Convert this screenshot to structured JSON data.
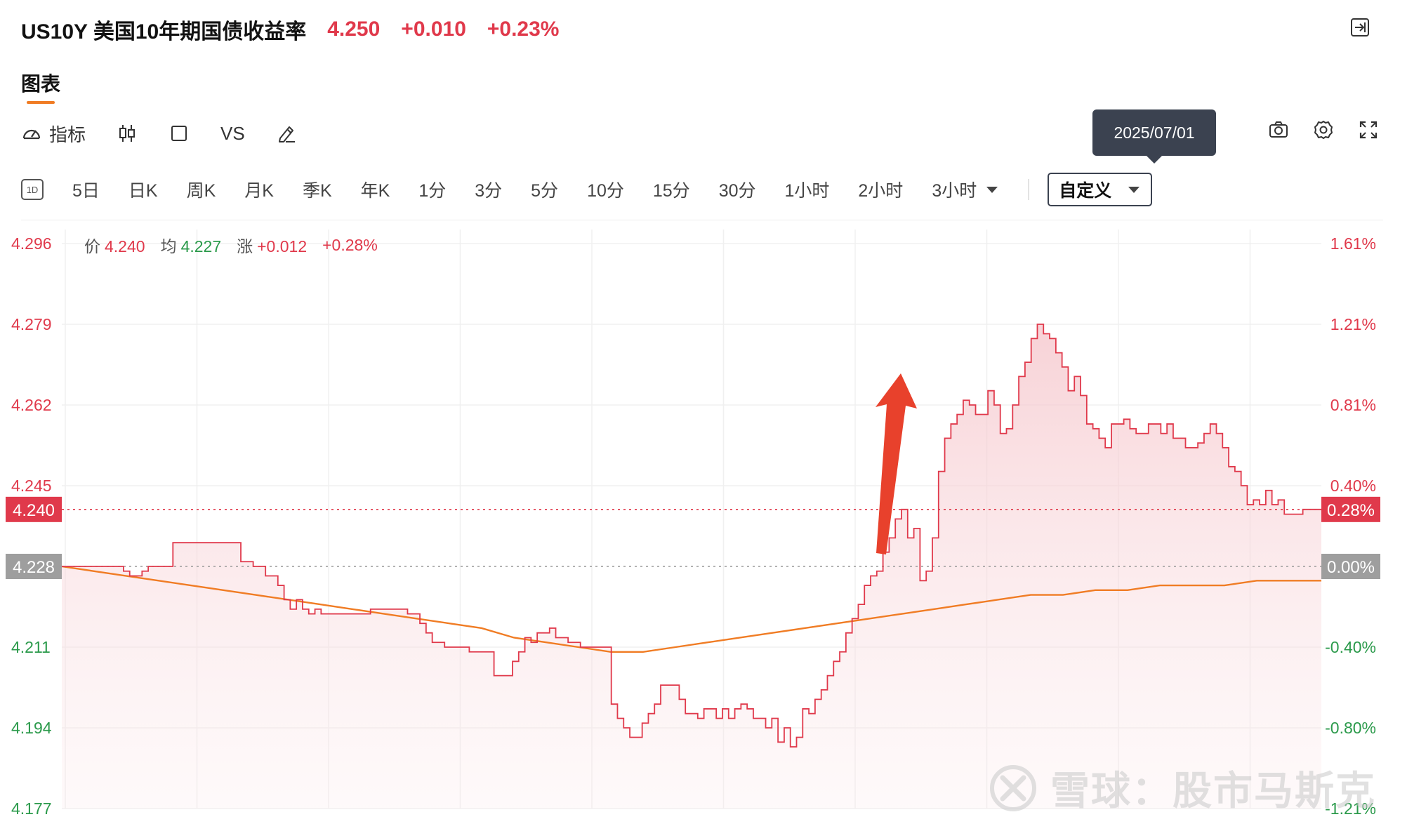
{
  "header": {
    "title": "US10Y 美国10年期国债收益率",
    "price": "4.250",
    "change": "+0.010",
    "change_pct": "+0.23%"
  },
  "tabs": {
    "chart": "图表"
  },
  "toolbar": {
    "indicator_label": "指标",
    "vs_label": "VS"
  },
  "tooltip": {
    "date": "2025/07/01"
  },
  "periods": {
    "items": [
      "5日",
      "日K",
      "周K",
      "月K",
      "季K",
      "年K",
      "1分",
      "3分",
      "5分",
      "10分",
      "15分",
      "30分",
      "1小时",
      "2小时"
    ],
    "more": "3小时",
    "custom": "自定义"
  },
  "info": {
    "price_label": "价",
    "price": "4.240",
    "avg_label": "均",
    "avg": "4.227",
    "chg_label": "涨",
    "chg": "+0.012",
    "chg_pct": "+0.28%"
  },
  "watermark": {
    "text": "雪球：股市马斯克"
  },
  "colors": {
    "up": "#e0394b",
    "down": "#2b9a4b",
    "avg_line": "#f07c24",
    "tooltip_bg": "#3b4250",
    "neutral_tag": "#9e9e9e"
  },
  "chart_data": {
    "type": "area",
    "left_axis_ticks": [
      "4.296",
      "4.279",
      "4.262",
      "4.245",
      "4.211",
      "4.194",
      "4.177"
    ],
    "right_axis_ticks": [
      "1.61%",
      "1.21%",
      "0.81%",
      "0.40%",
      "-0.40%",
      "-0.80%",
      "-1.21%"
    ],
    "ylim": [
      4.177,
      4.296
    ],
    "prev_close": 4.228,
    "prev_close_label": "4.228",
    "prev_close_pct": "0.00%",
    "current": 4.24,
    "current_label": "4.240",
    "current_pct": "0.28%",
    "grid": true,
    "series": [
      {
        "type": "price",
        "values": [
          4.228,
          4.228,
          4.228,
          4.228,
          4.228,
          4.228,
          4.228,
          4.228,
          4.228,
          4.228,
          4.227,
          4.226,
          4.226,
          4.227,
          4.228,
          4.228,
          4.228,
          4.228,
          4.233,
          4.233,
          4.233,
          4.233,
          4.233,
          4.233,
          4.233,
          4.233,
          4.233,
          4.233,
          4.233,
          4.229,
          4.229,
          4.228,
          4.228,
          4.226,
          4.226,
          4.224,
          4.221,
          4.219,
          4.221,
          4.219,
          4.218,
          4.219,
          4.218,
          4.218,
          4.218,
          4.218,
          4.218,
          4.218,
          4.218,
          4.218,
          4.219,
          4.219,
          4.219,
          4.219,
          4.219,
          4.219,
          4.218,
          4.218,
          4.216,
          4.214,
          4.212,
          4.212,
          4.211,
          4.211,
          4.211,
          4.211,
          4.21,
          4.21,
          4.21,
          4.21,
          4.205,
          4.205,
          4.205,
          4.208,
          4.21,
          4.213,
          4.212,
          4.214,
          4.214,
          4.215,
          4.213,
          4.213,
          4.212,
          4.212,
          4.211,
          4.211,
          4.211,
          4.211,
          4.211,
          4.199,
          4.196,
          4.194,
          4.192,
          4.192,
          4.195,
          4.197,
          4.199,
          4.203,
          4.203,
          4.203,
          4.2,
          4.197,
          4.197,
          4.196,
          4.198,
          4.198,
          4.196,
          4.198,
          4.196,
          4.198,
          4.199,
          4.198,
          4.196,
          4.196,
          4.194,
          4.196,
          4.191,
          4.194,
          4.19,
          4.192,
          4.198,
          4.197,
          4.2,
          4.202,
          4.205,
          4.208,
          4.21,
          4.214,
          4.217,
          4.22,
          4.224,
          4.226,
          4.227,
          4.231,
          4.234,
          4.238,
          4.24,
          4.234,
          4.236,
          4.225,
          4.227,
          4.234,
          4.248,
          4.255,
          4.258,
          4.26,
          4.263,
          4.262,
          4.26,
          4.26,
          4.265,
          4.262,
          4.256,
          4.257,
          4.262,
          4.268,
          4.271,
          4.276,
          4.279,
          4.277,
          4.276,
          4.273,
          4.27,
          4.265,
          4.268,
          4.264,
          4.258,
          4.257,
          4.255,
          4.253,
          4.258,
          4.258,
          4.259,
          4.257,
          4.256,
          4.256,
          4.258,
          4.258,
          4.256,
          4.258,
          4.255,
          4.255,
          4.253,
          4.253,
          4.254,
          4.256,
          4.258,
          4.256,
          4.253,
          4.249,
          4.248,
          4.245,
          4.241,
          4.242,
          4.241,
          4.244,
          4.241,
          4.242,
          4.239,
          4.239,
          4.239,
          4.24,
          4.24,
          4.24,
          4.24
        ]
      },
      {
        "type": "average",
        "values": [
          4.228,
          4.227,
          4.226,
          4.225,
          4.224,
          4.223,
          4.222,
          4.221,
          4.22,
          4.219,
          4.218,
          4.217,
          4.216,
          4.215,
          4.213,
          4.212,
          4.211,
          4.21,
          4.21,
          4.211,
          4.212,
          4.213,
          4.214,
          4.215,
          4.216,
          4.217,
          4.218,
          4.219,
          4.22,
          4.221,
          4.222,
          4.222,
          4.223,
          4.223,
          4.224,
          4.224,
          4.224,
          4.225,
          4.225,
          4.225
        ]
      }
    ]
  }
}
